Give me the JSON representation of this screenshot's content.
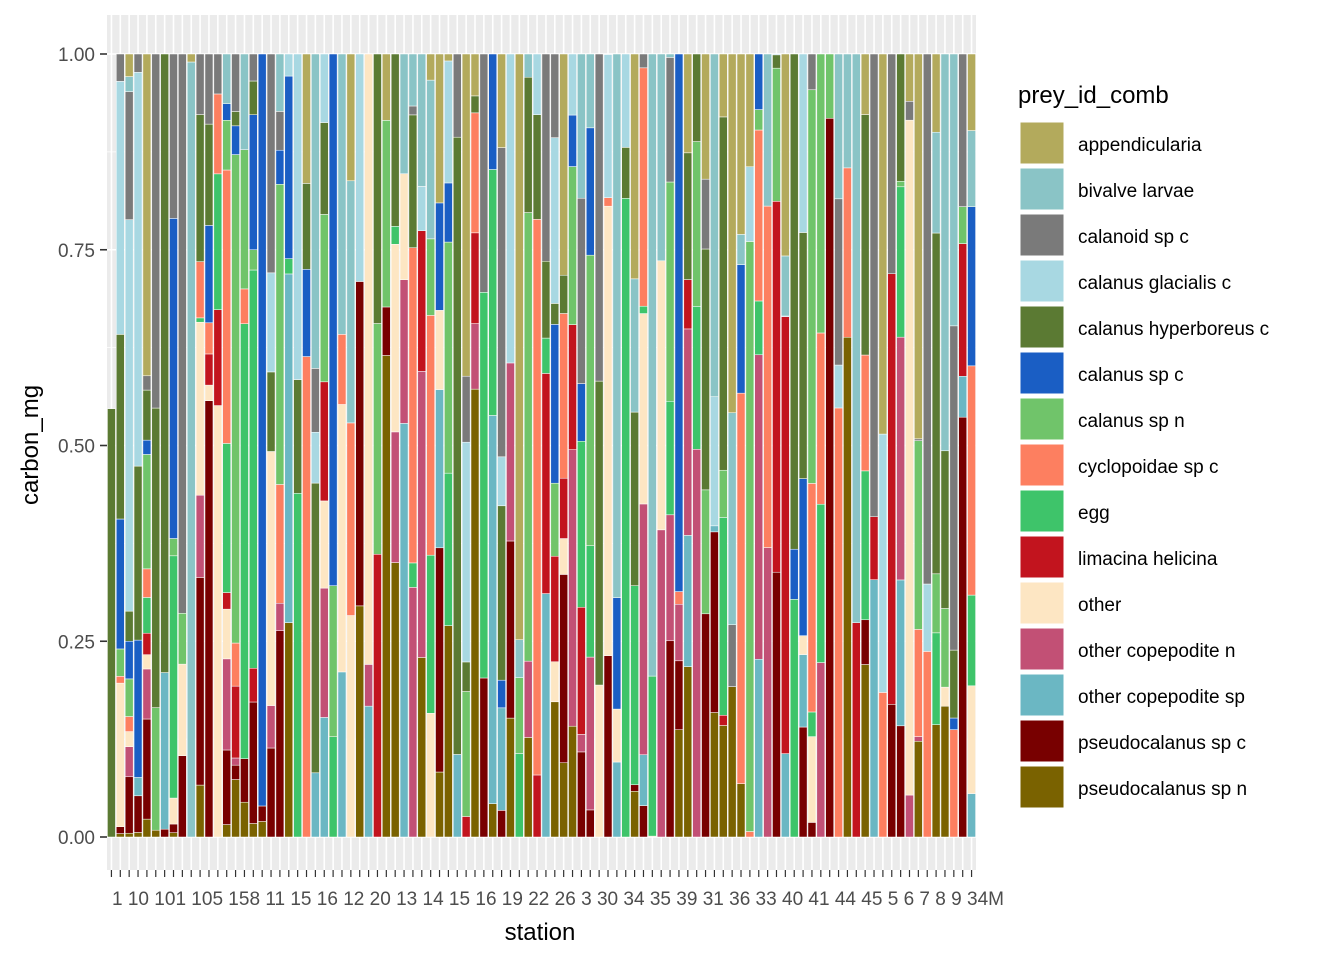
{
  "chart_data": {
    "type": "bar",
    "stacked": "fill",
    "xlabel": "station",
    "ylabel": "carbon_mg",
    "ylim": [
      0,
      1
    ],
    "yticks": [
      "0.00",
      "0.25",
      "0.50",
      "0.75",
      "1.00"
    ],
    "grid": true,
    "legend": {
      "position": "right",
      "title": "prey_id_comb"
    },
    "series": [
      {
        "name": "appendicularia",
        "color": "#B3AA5C"
      },
      {
        "name": "bivalve larvae",
        "color": "#8AC4C6"
      },
      {
        "name": "calanoid sp c",
        "color": "#7A7A7A"
      },
      {
        "name": "calanus glacialis c",
        "color": "#A8D8E2"
      },
      {
        "name": "calanus hyperboreus c",
        "color": "#5B7A33"
      },
      {
        "name": "calanus sp c",
        "color": "#1A5EC4"
      },
      {
        "name": "calanus sp n",
        "color": "#70C46A"
      },
      {
        "name": "cyclopoidae sp c",
        "color": "#FD7F60"
      },
      {
        "name": "egg",
        "color": "#3EC46A"
      },
      {
        "name": "limacina helicina",
        "color": "#C2141E"
      },
      {
        "name": "other",
        "color": "#FDE6C3"
      },
      {
        "name": "other copepodite n",
        "color": "#C25075"
      },
      {
        "name": "other copepodite sp",
        "color": "#6BB7C3"
      },
      {
        "name": "pseudocalanus sp c",
        "color": "#780000"
      },
      {
        "name": "pseudocalanus sp n",
        "color": "#7A6200"
      }
    ],
    "x_tick_labels_visible": "1, 10, 101, 105, 158, 11, 15, 16, 12, 20, 13, 14, 15, 16, 19, 22, 26, 3, 30, 34, 35, 39, 31, 36, 33, 40, 41, 44, 45, 5, 6, 7, 8, 9, 34M",
    "bars": [
      [
        0,
        0,
        0,
        0,
        0.547,
        0,
        0,
        0,
        0,
        0,
        0,
        0,
        0,
        0,
        0
      ],
      [
        0,
        0,
        0.04,
        0.37,
        0.27,
        0.19,
        0.04,
        0.01,
        0,
        0,
        0.21,
        0,
        0,
        0.01,
        0.005
      ],
      [
        0.03,
        0.02,
        0.17,
        0.52,
        0.04,
        0.05,
        0.05,
        0.02,
        0,
        0,
        0.02,
        0.04,
        0,
        0.075,
        0.005
      ],
      [
        0,
        0,
        0.02,
        0.43,
        0.19,
        0.15,
        0,
        0,
        0,
        0,
        0,
        0,
        0.02,
        0.04,
        0.005
      ],
      [
        0.45,
        0,
        0.02,
        0,
        0.07,
        0.02,
        0.16,
        0.04,
        0.05,
        0.03,
        0.02,
        0.07,
        0,
        0.14,
        0.025
      ],
      [
        0,
        0,
        0.26,
        0,
        0.22,
        0,
        0.09,
        0,
        0,
        0,
        0,
        0,
        0,
        0,
        0.005
      ],
      [
        0,
        0,
        0,
        0,
        0.395,
        0,
        0,
        0,
        0,
        0,
        0,
        0,
        0.1,
        0.005,
        0
      ],
      [
        0,
        0,
        0.19,
        0,
        0,
        0.37,
        0.02,
        0,
        0.28,
        0,
        0.03,
        0,
        0,
        0.01,
        0.005
      ],
      [
        0,
        0,
        0.55,
        0,
        0,
        0,
        0.05,
        0,
        0,
        0,
        0.09,
        0,
        0,
        0.08,
        0
      ],
      [
        0.01,
        0.97,
        0,
        0,
        0,
        0,
        0,
        0,
        0,
        0,
        0,
        0,
        0,
        0,
        0
      ],
      [
        0,
        0,
        0.07,
        0,
        0.17,
        0,
        0,
        0.065,
        0.005,
        0,
        0.2,
        0.095,
        0,
        0.24,
        0.06
      ],
      [
        0,
        0,
        0.09,
        0,
        0.13,
        0.125,
        0,
        0.04,
        0,
        0.04,
        0.02,
        0,
        0,
        0.56,
        0
      ],
      [
        0,
        0,
        0.05,
        0,
        0,
        0.0,
        0,
        0.1,
        0.17,
        0.12,
        0.54,
        0,
        0,
        0,
        0
      ],
      [
        0,
        0.06,
        0.0,
        0.0,
        0,
        0.02,
        0.06,
        0.33,
        0.18,
        0.02,
        0.06,
        0.11,
        0,
        0.09,
        0.015
      ],
      [
        0,
        0,
        0.08,
        0,
        0.02,
        0.04,
        0.68,
        0.06,
        0,
        0.1,
        0,
        0.01,
        0,
        0.02,
        0.08
      ],
      [
        0,
        0.11,
        0,
        0.0,
        0,
        0,
        0.16,
        0.04,
        0.5,
        0,
        0,
        0,
        0,
        0.05,
        0.04
      ],
      [
        0,
        0,
        0.04,
        0,
        0.05,
        0.2,
        0.03,
        0,
        0.59,
        0.05,
        0,
        0,
        0,
        0.18,
        0.02
      ],
      [
        0,
        0,
        0,
        0,
        0,
        0.97,
        0,
        0,
        0,
        0,
        0,
        0,
        0,
        0.02,
        0.02
      ]
    ]
  }
}
